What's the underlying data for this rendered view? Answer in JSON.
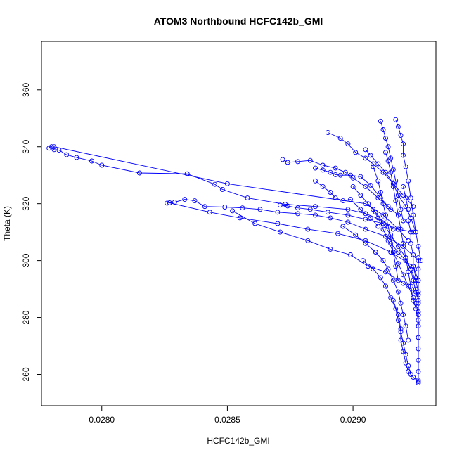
{
  "chart_data": {
    "type": "scatter",
    "title": "ATOM3 Northbound HCFC142b_GMI",
    "xlabel": "HCFC142b_GMI",
    "ylabel": "Theta (K)",
    "xlim": [
      0.02776,
      0.02933
    ],
    "ylim": [
      249,
      377
    ],
    "x_ticks": [
      0.028,
      0.0285,
      0.029
    ],
    "x_tick_labels": [
      "0.0280",
      "0.0285",
      "0.0290"
    ],
    "y_ticks": [
      260,
      280,
      300,
      320,
      340,
      360
    ],
    "y_tick_labels": [
      "260",
      "280",
      "300",
      "320",
      "340",
      "360"
    ],
    "grid": false,
    "marker": "open-circle",
    "color": "#0000ff",
    "series": [
      {
        "points": [
          [
            0.02779,
            339.5
          ],
          [
            0.0278,
            340.0
          ],
          [
            0.02781,
            339.0
          ],
          [
            0.02783,
            338.8
          ],
          [
            0.02786,
            337.2
          ],
          [
            0.0279,
            336.2
          ],
          [
            0.02796,
            335.0
          ],
          [
            0.028,
            333.5
          ],
          [
            0.02815,
            330.8
          ],
          [
            0.02834,
            330.5
          ],
          [
            0.02845,
            326.8
          ],
          [
            0.02848,
            325.0
          ],
          [
            0.02858,
            322.0
          ],
          [
            0.02873,
            319.8
          ],
          [
            0.02885,
            319.0
          ],
          [
            0.02898,
            318.0
          ],
          [
            0.02905,
            316.5
          ],
          [
            0.02912,
            314.0
          ],
          [
            0.02916,
            311.0
          ]
        ]
      },
      {
        "points": [
          [
            0.02781,
            340.0
          ],
          [
            0.0285,
            327.0
          ],
          [
            0.02905,
            320.0
          ],
          [
            0.02912,
            316.0
          ],
          [
            0.02918,
            311.0
          ],
          [
            0.02922,
            307.0
          ]
        ]
      },
      {
        "points": [
          [
            0.02826,
            320.2
          ],
          [
            0.02829,
            320.5
          ],
          [
            0.02833,
            321.5
          ],
          [
            0.02837,
            321.0
          ],
          [
            0.02841,
            319.0
          ],
          [
            0.02849,
            318.8
          ],
          [
            0.02856,
            318.5
          ],
          [
            0.02863,
            318.0
          ],
          [
            0.0287,
            317.0
          ],
          [
            0.02878,
            316.5
          ],
          [
            0.02885,
            316.0
          ],
          [
            0.02891,
            315.0
          ],
          [
            0.02898,
            313.5
          ],
          [
            0.02905,
            311.0
          ],
          [
            0.02913,
            308.5
          ],
          [
            0.0292,
            305.0
          ],
          [
            0.02926,
            300.0
          ]
        ]
      },
      {
        "points": [
          [
            0.02827,
            320.3
          ],
          [
            0.02843,
            317.0
          ],
          [
            0.02855,
            315.0
          ],
          [
            0.0287,
            313.0
          ],
          [
            0.02882,
            311.0
          ],
          [
            0.02894,
            309.5
          ],
          [
            0.02905,
            307.0
          ],
          [
            0.02915,
            303.0
          ],
          [
            0.02924,
            298.0
          ],
          [
            0.02926,
            293.0
          ]
        ]
      },
      {
        "points": [
          [
            0.02852,
            317.5
          ],
          [
            0.02861,
            313.0
          ],
          [
            0.02871,
            310.0
          ],
          [
            0.02882,
            307.0
          ],
          [
            0.02891,
            304.0
          ],
          [
            0.02899,
            302.0
          ],
          [
            0.02906,
            298.0
          ],
          [
            0.02913,
            296.0
          ],
          [
            0.0292,
            292.0
          ],
          [
            0.02926,
            288.0
          ]
        ]
      },
      {
        "points": [
          [
            0.02871,
            319.5
          ],
          [
            0.02874,
            319.2
          ],
          [
            0.02878,
            318.5
          ],
          [
            0.02883,
            318.0
          ],
          [
            0.0289,
            317.0
          ],
          [
            0.02898,
            316.0
          ],
          [
            0.02905,
            314.5
          ],
          [
            0.02912,
            313.0
          ],
          [
            0.02918,
            311.0
          ],
          [
            0.02924,
            310.0
          ]
        ]
      },
      {
        "points": [
          [
            0.02872,
            335.5
          ],
          [
            0.02874,
            334.5
          ],
          [
            0.02878,
            334.8
          ],
          [
            0.02883,
            335.2
          ],
          [
            0.02888,
            333.5
          ],
          [
            0.02893,
            332.5
          ],
          [
            0.02897,
            331.0
          ],
          [
            0.029,
            329.0
          ],
          [
            0.02905,
            326.0
          ],
          [
            0.0291,
            322.0
          ],
          [
            0.02914,
            319.0
          ],
          [
            0.02918,
            316.0
          ]
        ]
      },
      {
        "points": [
          [
            0.02885,
            332.5
          ],
          [
            0.02888,
            331.8
          ],
          [
            0.02891,
            331.0
          ],
          [
            0.02893,
            330.2
          ],
          [
            0.02895,
            330.0
          ],
          [
            0.02899,
            330.0
          ],
          [
            0.02903,
            329.5
          ],
          [
            0.02907,
            326.5
          ],
          [
            0.02911,
            322.0
          ],
          [
            0.02915,
            318.0
          ]
        ]
      },
      {
        "points": [
          [
            0.02885,
            328.0
          ],
          [
            0.02888,
            326.0
          ],
          [
            0.02891,
            324.0
          ],
          [
            0.02893,
            322.0
          ],
          [
            0.02896,
            321.0
          ],
          [
            0.02899,
            321.5
          ],
          [
            0.02903,
            318.0
          ],
          [
            0.02907,
            315.0
          ],
          [
            0.0291,
            312.0
          ]
        ]
      },
      {
        "points": [
          [
            0.0289,
            345.0
          ],
          [
            0.02895,
            343.0
          ],
          [
            0.02898,
            341.0
          ],
          [
            0.02901,
            338.0
          ],
          [
            0.02905,
            336.0
          ],
          [
            0.02908,
            334.0
          ],
          [
            0.02912,
            331.0
          ],
          [
            0.02916,
            327.0
          ],
          [
            0.0292,
            323.0
          ],
          [
            0.02924,
            319.0
          ]
        ]
      },
      {
        "points": [
          [
            0.02905,
            339.0
          ],
          [
            0.02907,
            337.0
          ],
          [
            0.0291,
            334.0
          ],
          [
            0.02913,
            331.0
          ],
          [
            0.02916,
            327.0
          ],
          [
            0.02918,
            323.0
          ],
          [
            0.02921,
            319.0
          ],
          [
            0.02923,
            315.0
          ],
          [
            0.02925,
            310.0
          ],
          [
            0.02926,
            305.0
          ],
          [
            0.02927,
            300.0
          ]
        ]
      },
      {
        "points": [
          [
            0.02911,
            349.0
          ],
          [
            0.02912,
            346.0
          ],
          [
            0.02913,
            343.0
          ],
          [
            0.02914,
            340.0
          ],
          [
            0.02915,
            336.0
          ],
          [
            0.02916,
            332.0
          ],
          [
            0.02917,
            328.0
          ],
          [
            0.02918,
            323.0
          ],
          [
            0.02919,
            318.0
          ],
          [
            0.0292,
            314.0
          ]
        ]
      },
      {
        "points": [
          [
            0.02917,
            349.5
          ],
          [
            0.02918,
            347.0
          ],
          [
            0.02919,
            344.0
          ],
          [
            0.0292,
            341.0
          ],
          [
            0.0292,
            337.0
          ],
          [
            0.02921,
            333.0
          ],
          [
            0.02922,
            328.0
          ],
          [
            0.02923,
            322.0
          ],
          [
            0.02924,
            316.0
          ],
          [
            0.02925,
            310.0
          ]
        ]
      },
      {
        "points": [
          [
            0.02908,
            333.0
          ],
          [
            0.0291,
            328.0
          ],
          [
            0.02911,
            324.0
          ],
          [
            0.02912,
            320.0
          ],
          [
            0.02913,
            316.0
          ],
          [
            0.02914,
            312.0
          ],
          [
            0.02915,
            308.0
          ],
          [
            0.02916,
            303.0
          ],
          [
            0.02917,
            298.0
          ],
          [
            0.02918,
            293.0
          ]
        ]
      },
      {
        "points": [
          [
            0.02896,
            312.0
          ],
          [
            0.02901,
            309.0
          ],
          [
            0.02905,
            306.0
          ],
          [
            0.02909,
            303.0
          ],
          [
            0.02912,
            300.0
          ],
          [
            0.02914,
            297.0
          ],
          [
            0.02916,
            293.0
          ],
          [
            0.02918,
            289.0
          ],
          [
            0.02919,
            285.0
          ],
          [
            0.0292,
            281.0
          ],
          [
            0.02921,
            277.0
          ],
          [
            0.02922,
            272.0
          ]
        ]
      },
      {
        "points": [
          [
            0.02904,
            300.0
          ],
          [
            0.02908,
            297.0
          ],
          [
            0.02911,
            294.0
          ],
          [
            0.02913,
            291.0
          ],
          [
            0.02915,
            287.0
          ],
          [
            0.02917,
            283.0
          ],
          [
            0.02918,
            279.0
          ],
          [
            0.02919,
            275.0
          ],
          [
            0.0292,
            271.0
          ],
          [
            0.02921,
            267.0
          ],
          [
            0.02922,
            263.0
          ],
          [
            0.02923,
            260.0
          ]
        ]
      },
      {
        "points": [
          [
            0.02916,
            286.0
          ],
          [
            0.02918,
            281.0
          ],
          [
            0.02919,
            276.0
          ],
          [
            0.02919,
            272.0
          ],
          [
            0.0292,
            268.0
          ],
          [
            0.02921,
            264.0
          ],
          [
            0.02922,
            261.0
          ],
          [
            0.02924,
            259.0
          ],
          [
            0.02926,
            257.5
          ],
          [
            0.02926,
            257.0
          ]
        ]
      },
      {
        "points": [
          [
            0.02926,
            301.0
          ],
          [
            0.02926,
            297.0
          ],
          [
            0.02926,
            293.0
          ],
          [
            0.02926,
            289.0
          ],
          [
            0.02926,
            285.0
          ],
          [
            0.02926,
            281.0
          ],
          [
            0.02926,
            277.0
          ],
          [
            0.02926,
            273.0
          ],
          [
            0.02926,
            269.0
          ],
          [
            0.02926,
            265.0
          ],
          [
            0.02926,
            261.0
          ],
          [
            0.02926,
            258.0
          ]
        ]
      },
      {
        "points": [
          [
            0.02915,
            306.0
          ],
          [
            0.02918,
            303.0
          ],
          [
            0.02921,
            300.0
          ],
          [
            0.02923,
            297.0
          ],
          [
            0.02924,
            293.0
          ],
          [
            0.02925,
            289.0
          ],
          [
            0.02925,
            285.0
          ],
          [
            0.02926,
            281.0
          ],
          [
            0.02926,
            277.0
          ],
          [
            0.02926,
            273.0
          ]
        ]
      },
      {
        "points": [
          [
            0.029,
            326.0
          ],
          [
            0.02903,
            323.0
          ],
          [
            0.02906,
            320.0
          ],
          [
            0.02909,
            317.0
          ],
          [
            0.02912,
            313.0
          ],
          [
            0.02915,
            309.0
          ],
          [
            0.02918,
            305.0
          ],
          [
            0.02921,
            301.0
          ],
          [
            0.02923,
            297.0
          ],
          [
            0.02925,
            293.0
          ],
          [
            0.02926,
            289.0
          ]
        ]
      },
      {
        "points": [
          [
            0.02913,
            338.0
          ],
          [
            0.02914,
            335.0
          ],
          [
            0.02915,
            331.0
          ],
          [
            0.02916,
            326.0
          ],
          [
            0.02917,
            321.0
          ],
          [
            0.02918,
            316.0
          ],
          [
            0.02919,
            311.0
          ],
          [
            0.0292,
            306.0
          ],
          [
            0.02921,
            301.0
          ],
          [
            0.02922,
            296.0
          ],
          [
            0.02923,
            291.0
          ],
          [
            0.02924,
            286.0
          ]
        ]
      },
      {
        "points": [
          [
            0.02908,
            318.0
          ],
          [
            0.0291,
            315.0
          ],
          [
            0.02912,
            311.0
          ],
          [
            0.02914,
            307.0
          ],
          [
            0.02916,
            303.0
          ],
          [
            0.02918,
            299.0
          ],
          [
            0.0292,
            295.0
          ],
          [
            0.02922,
            291.0
          ],
          [
            0.02924,
            287.0
          ],
          [
            0.02925,
            283.0
          ],
          [
            0.02926,
            279.0
          ]
        ]
      },
      {
        "points": [
          [
            0.0292,
            326.0
          ],
          [
            0.02921,
            322.0
          ],
          [
            0.02922,
            318.0
          ],
          [
            0.02922,
            314.0
          ],
          [
            0.02923,
            310.0
          ],
          [
            0.02923,
            306.0
          ],
          [
            0.02924,
            302.0
          ],
          [
            0.02924,
            298.0
          ],
          [
            0.02925,
            294.0
          ],
          [
            0.02925,
            290.0
          ],
          [
            0.02926,
            286.0
          ],
          [
            0.02926,
            282.0
          ]
        ]
      }
    ]
  }
}
